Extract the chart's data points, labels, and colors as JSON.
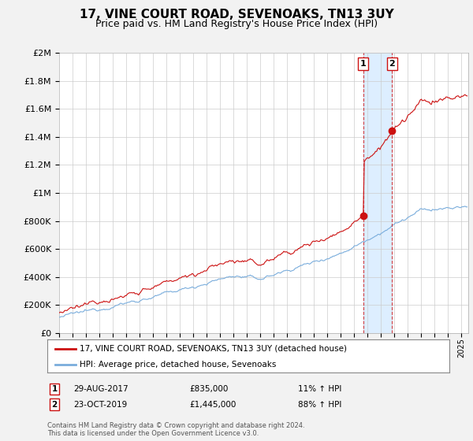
{
  "title": "17, VINE COURT ROAD, SEVENOAKS, TN13 3UY",
  "subtitle": "Price paid vs. HM Land Registry's House Price Index (HPI)",
  "title_fontsize": 11,
  "subtitle_fontsize": 9,
  "hpi_color": "#7aaddc",
  "price_color": "#cc1111",
  "background_color": "#f2f2f2",
  "plot_background": "#ffffff",
  "shade_color": "#ddeeff",
  "yticks": [
    0,
    200000,
    400000,
    600000,
    800000,
    1000000,
    1200000,
    1400000,
    1600000,
    1800000,
    2000000
  ],
  "ytick_labels": [
    "£0",
    "£200K",
    "£400K",
    "£600K",
    "£800K",
    "£1M",
    "£1.2M",
    "£1.4M",
    "£1.6M",
    "£1.8M",
    "£2M"
  ],
  "legend_label_price": "17, VINE COURT ROAD, SEVENOAKS, TN13 3UY (detached house)",
  "legend_label_hpi": "HPI: Average price, detached house, Sevenoaks",
  "transaction1_date": "29-AUG-2017",
  "transaction1_price": "£835,000",
  "transaction1_hpi": "11% ↑ HPI",
  "transaction1_year": 2017.66,
  "transaction1_value": 835000,
  "transaction2_date": "23-OCT-2019",
  "transaction2_price": "£1,445,000",
  "transaction2_hpi": "88% ↑ HPI",
  "transaction2_year": 2019.81,
  "transaction2_value": 1445000,
  "footer_text": "Contains HM Land Registry data © Crown copyright and database right 2024.\nThis data is licensed under the Open Government Licence v3.0.",
  "xmin": 1995,
  "xmax": 2025.5,
  "ymin": 0,
  "ymax": 2000000
}
